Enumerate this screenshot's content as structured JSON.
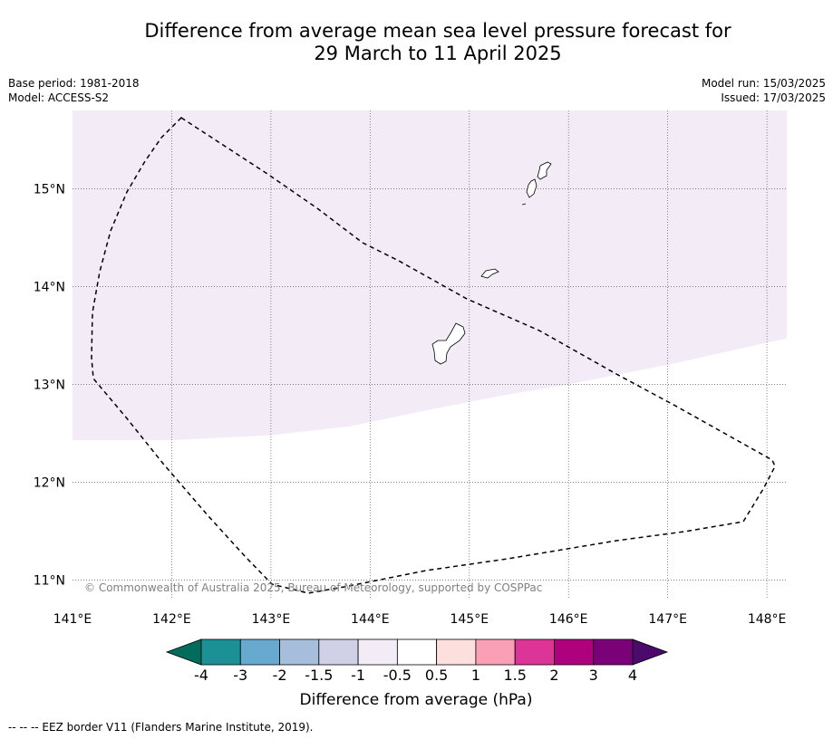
{
  "title": {
    "line1": "Difference from average mean sea level pressure forecast for",
    "line2": "29 March to 11 April 2025"
  },
  "meta_left": {
    "base_period": "Base period: 1981-2018",
    "model": "Model: ACCESS-S2"
  },
  "meta_right": {
    "model_run": "Model run: 15/03/2025",
    "issued": "Issued: 17/03/2025"
  },
  "map": {
    "lon_range": [
      141.0,
      148.2
    ],
    "lat_range": [
      10.8,
      15.8
    ],
    "lon_ticks": [
      {
        "value": 141,
        "label": "141°E"
      },
      {
        "value": 142,
        "label": "142°E"
      },
      {
        "value": 143,
        "label": "143°E"
      },
      {
        "value": 144,
        "label": "144°E"
      },
      {
        "value": 145,
        "label": "145°E"
      },
      {
        "value": 146,
        "label": "146°E"
      },
      {
        "value": 147,
        "label": "147°E"
      },
      {
        "value": 148,
        "label": "148°E"
      }
    ],
    "lat_ticks": [
      {
        "value": 11,
        "label": "11°N"
      },
      {
        "value": 12,
        "label": "12°N"
      },
      {
        "value": 13,
        "label": "13°N"
      },
      {
        "value": 14,
        "label": "14°N"
      },
      {
        "value": 15,
        "label": "15°N"
      }
    ],
    "shaded_region": {
      "category": "-1 to -0.5",
      "color": "#f3ecf6",
      "boundary_lonlat": [
        [
          141.0,
          12.43
        ],
        [
          142.0,
          12.43
        ],
        [
          143.0,
          12.48
        ],
        [
          143.8,
          12.57
        ],
        [
          144.5,
          12.72
        ],
        [
          145.3,
          12.88
        ],
        [
          146.0,
          13.0
        ],
        [
          147.0,
          13.2
        ],
        [
          148.2,
          13.47
        ]
      ]
    },
    "copyright": "© Commonwealth of Australia 2025, Bureau of Meteorology, supported by COSPPac"
  },
  "colorbar": {
    "label": "Difference from average (hPa)",
    "tick_labels": [
      "-4",
      "-3",
      "-2",
      "-1.5",
      "-1",
      "-0.5",
      "0.5",
      "1",
      "1.5",
      "2",
      "3",
      "4"
    ],
    "below_color": "#006d5b",
    "above_color": "#4b0a6c",
    "colors": [
      "#1b9195",
      "#67a9cf",
      "#a6bddb",
      "#d0d1e6",
      "#f3ecf6",
      "#ffffff",
      "#fde0dd",
      "#fa9fb5",
      "#dd3497",
      "#ae017e",
      "#7a0177"
    ]
  },
  "footer": "--  --  -- EEZ border V11 (Flanders Marine Institute, 2019)."
}
